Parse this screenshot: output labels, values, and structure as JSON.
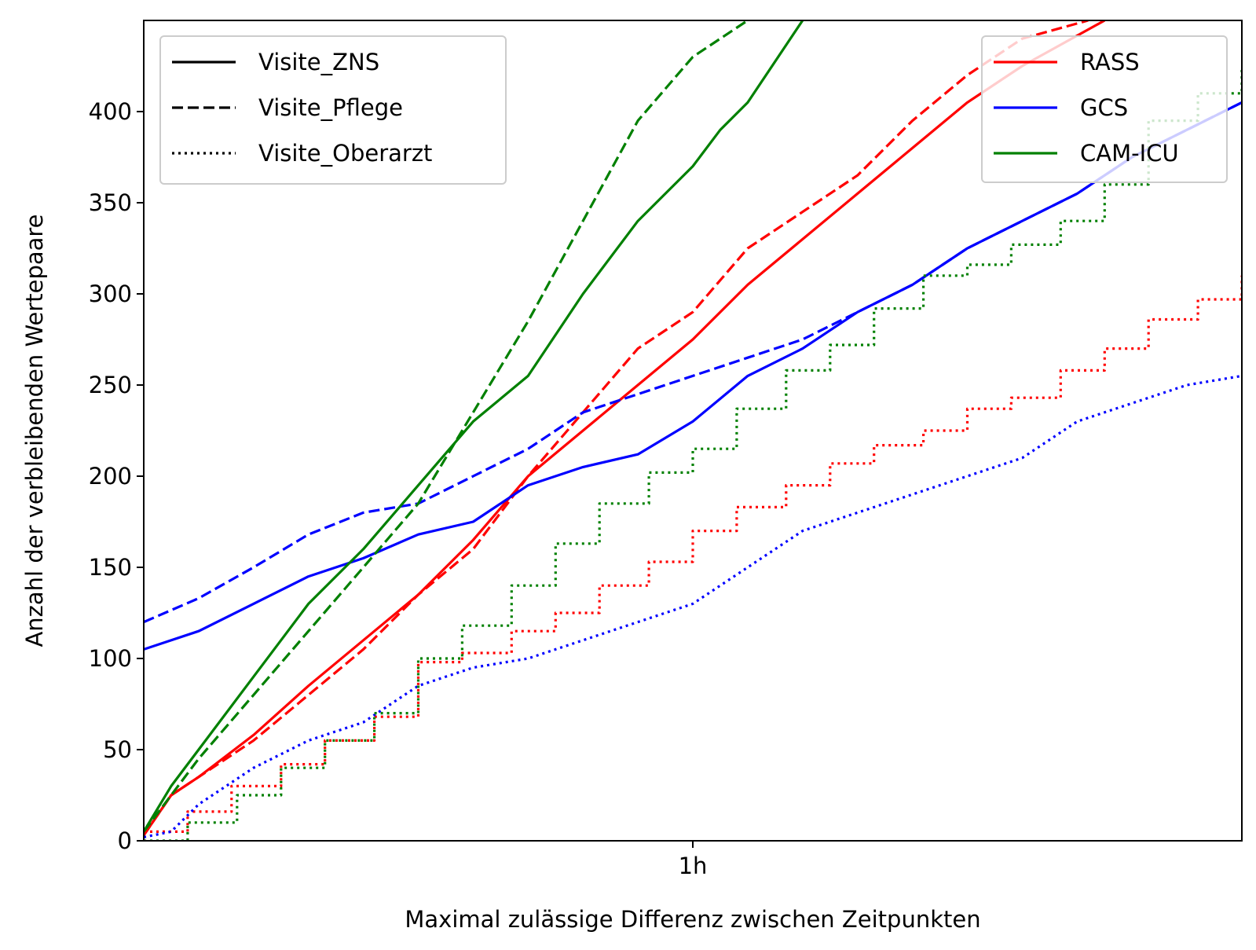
{
  "chart_data": {
    "type": "line",
    "title": "",
    "xlabel": "Maximal zulässige Differenz zwischen Zeitpunkten",
    "ylabel": "Anzahl der verbleibenden Wertepaare",
    "x_unit": "hours",
    "xlim": [
      0,
      2
    ],
    "ylim": [
      0,
      450
    ],
    "x_ticks": [
      {
        "value": 1,
        "label": "1h"
      }
    ],
    "y_ticks": [
      0,
      50,
      100,
      150,
      200,
      250,
      300,
      350,
      400
    ],
    "grid": false,
    "style_legend": {
      "placement": "top-left",
      "entries": [
        {
          "label": "Visite_ZNS",
          "dash": "solid"
        },
        {
          "label": "Visite_Pflege",
          "dash": "dashed"
        },
        {
          "label": "Visite_Oberarzt",
          "dash": "dotted"
        }
      ]
    },
    "color_legend": {
      "placement": "top-right",
      "entries": [
        {
          "label": "RASS",
          "color": "#ff0000"
        },
        {
          "label": "GCS",
          "color": "#0000ff"
        },
        {
          "label": "CAM-ICU",
          "color": "#008000"
        }
      ]
    },
    "series": [
      {
        "variable": "RASS",
        "visit": "Visite_ZNS",
        "color": "#ff0000",
        "dash": "solid",
        "step": false,
        "x": [
          0,
          0.05,
          0.1,
          0.2,
          0.3,
          0.4,
          0.5,
          0.6,
          0.7,
          0.8,
          0.9,
          1.0,
          1.1,
          1.2,
          1.3,
          1.4,
          1.5,
          1.6,
          1.75
        ],
        "y": [
          3,
          25,
          35,
          58,
          85,
          110,
          135,
          165,
          200,
          225,
          250,
          275,
          305,
          330,
          355,
          380,
          405,
          425,
          450
        ]
      },
      {
        "variable": "RASS",
        "visit": "Visite_Pflege",
        "color": "#ff0000",
        "dash": "dashed",
        "step": false,
        "x": [
          0,
          0.05,
          0.1,
          0.2,
          0.3,
          0.4,
          0.5,
          0.6,
          0.7,
          0.8,
          0.9,
          1.0,
          1.1,
          1.2,
          1.3,
          1.4,
          1.5,
          1.6,
          1.72
        ],
        "y": [
          3,
          25,
          35,
          55,
          80,
          105,
          135,
          160,
          200,
          235,
          270,
          290,
          325,
          345,
          365,
          395,
          420,
          440,
          450
        ]
      },
      {
        "variable": "RASS",
        "visit": "Visite_Oberarzt",
        "color": "#ff0000",
        "dash": "dotted",
        "step": true,
        "x": [
          0,
          0.08,
          0.16,
          0.25,
          0.33,
          0.42,
          0.5,
          0.58,
          0.67,
          0.75,
          0.83,
          0.92,
          1.0,
          1.08,
          1.17,
          1.25,
          1.33,
          1.42,
          1.5,
          1.58,
          1.67,
          1.75,
          1.83,
          1.92,
          2.0
        ],
        "y": [
          5,
          16,
          30,
          42,
          55,
          68,
          98,
          103,
          115,
          125,
          140,
          153,
          170,
          183,
          195,
          207,
          217,
          225,
          237,
          243,
          258,
          270,
          286,
          297,
          310
        ]
      },
      {
        "variable": "GCS",
        "visit": "Visite_ZNS",
        "color": "#0000ff",
        "dash": "solid",
        "step": false,
        "x": [
          0,
          0.1,
          0.2,
          0.3,
          0.4,
          0.5,
          0.6,
          0.7,
          0.8,
          0.9,
          1.0,
          1.1,
          1.2,
          1.3,
          1.4,
          1.5,
          1.6,
          1.7,
          1.8,
          1.9,
          2.0
        ],
        "y": [
          105,
          115,
          130,
          145,
          155,
          168,
          175,
          195,
          205,
          212,
          230,
          255,
          270,
          290,
          305,
          325,
          340,
          355,
          375,
          390,
          405
        ]
      },
      {
        "variable": "GCS",
        "visit": "Visite_Pflege",
        "color": "#0000ff",
        "dash": "dashed",
        "step": false,
        "x": [
          0,
          0.1,
          0.2,
          0.3,
          0.4,
          0.5,
          0.6,
          0.7,
          0.8,
          0.9,
          1.0,
          1.1,
          1.2,
          1.3,
          1.4,
          1.5,
          1.6,
          1.7,
          1.8,
          1.9,
          2.0
        ],
        "y": [
          120,
          133,
          150,
          168,
          180,
          185,
          200,
          215,
          235,
          245,
          255,
          265,
          275,
          290,
          305,
          325,
          340,
          355,
          375,
          390,
          405
        ]
      },
      {
        "variable": "GCS",
        "visit": "Visite_Oberarzt",
        "color": "#0000ff",
        "dash": "dotted",
        "step": false,
        "x": [
          0,
          0.05,
          0.1,
          0.2,
          0.3,
          0.4,
          0.5,
          0.6,
          0.7,
          0.8,
          0.9,
          1.0,
          1.1,
          1.2,
          1.3,
          1.4,
          1.5,
          1.6,
          1.7,
          1.8,
          1.9,
          2.0
        ],
        "y": [
          2,
          5,
          20,
          40,
          55,
          65,
          85,
          95,
          100,
          110,
          120,
          130,
          150,
          170,
          180,
          190,
          200,
          210,
          230,
          240,
          250,
          255
        ]
      },
      {
        "variable": "CAM-ICU",
        "visit": "Visite_ZNS",
        "color": "#008000",
        "dash": "solid",
        "step": false,
        "x": [
          0,
          0.05,
          0.1,
          0.2,
          0.3,
          0.4,
          0.5,
          0.6,
          0.7,
          0.8,
          0.9,
          1.0,
          1.05,
          1.1,
          1.2
        ],
        "y": [
          5,
          30,
          50,
          90,
          130,
          160,
          195,
          230,
          255,
          300,
          340,
          370,
          390,
          405,
          450
        ]
      },
      {
        "variable": "CAM-ICU",
        "visit": "Visite_Pflege",
        "color": "#008000",
        "dash": "dashed",
        "step": false,
        "x": [
          0,
          0.05,
          0.1,
          0.2,
          0.3,
          0.4,
          0.5,
          0.6,
          0.7,
          0.8,
          0.9,
          1.0,
          1.1
        ],
        "y": [
          5,
          25,
          45,
          80,
          115,
          150,
          185,
          235,
          285,
          340,
          395,
          430,
          450
        ]
      },
      {
        "variable": "CAM-ICU",
        "visit": "Visite_Oberarzt",
        "color": "#008000",
        "dash": "dotted",
        "step": true,
        "x": [
          0,
          0.08,
          0.17,
          0.25,
          0.33,
          0.42,
          0.5,
          0.58,
          0.67,
          0.75,
          0.83,
          0.92,
          1.0,
          1.08,
          1.17,
          1.25,
          1.33,
          1.42,
          1.5,
          1.58,
          1.67,
          1.75,
          1.83,
          1.92,
          2.0
        ],
        "y": [
          0,
          10,
          25,
          40,
          55,
          70,
          100,
          118,
          140,
          163,
          185,
          202,
          215,
          237,
          258,
          272,
          292,
          310,
          316,
          327,
          340,
          360,
          395,
          410,
          425
        ]
      }
    ]
  }
}
